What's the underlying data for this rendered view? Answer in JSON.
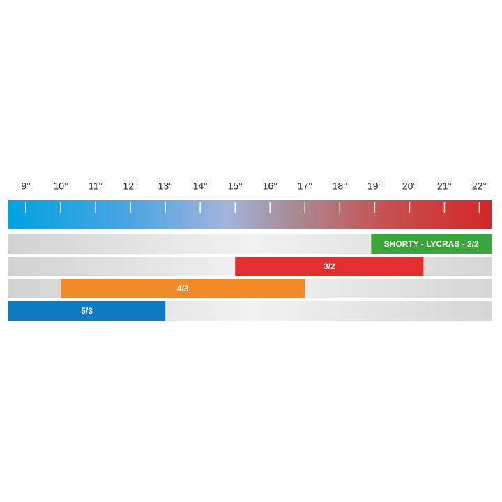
{
  "chart_data": {
    "type": "range-bar",
    "xlim": [
      8.5,
      22.35
    ],
    "xticks": [
      {
        "value": 9,
        "label": "9°"
      },
      {
        "value": 10,
        "label": "10°"
      },
      {
        "value": 11,
        "label": "11°"
      },
      {
        "value": 12,
        "label": "12°"
      },
      {
        "value": 13,
        "label": "13°"
      },
      {
        "value": 14,
        "label": "14°"
      },
      {
        "value": 15,
        "label": "15°"
      },
      {
        "value": 16,
        "label": "16°"
      },
      {
        "value": 17,
        "label": "17°"
      },
      {
        "value": 18,
        "label": "18°"
      },
      {
        "value": 19,
        "label": "19°"
      },
      {
        "value": 20,
        "label": "20°"
      },
      {
        "value": 21,
        "label": "21°"
      },
      {
        "value": 22,
        "label": "22°"
      }
    ],
    "bars": [
      {
        "name": "SHORTY - LYCRAS - 2/2",
        "color": "#3aa53a",
        "start": 18.9,
        "end": 22.35
      },
      {
        "name": "3/2",
        "color": "#e12e2e",
        "start": 15,
        "end": 20.4
      },
      {
        "name": "4/3",
        "color": "#f28a2a",
        "start": 10,
        "end": 17
      },
      {
        "name": "5/3",
        "color": "#0b7cc2",
        "start": 8.5,
        "end": 13
      }
    ]
  }
}
